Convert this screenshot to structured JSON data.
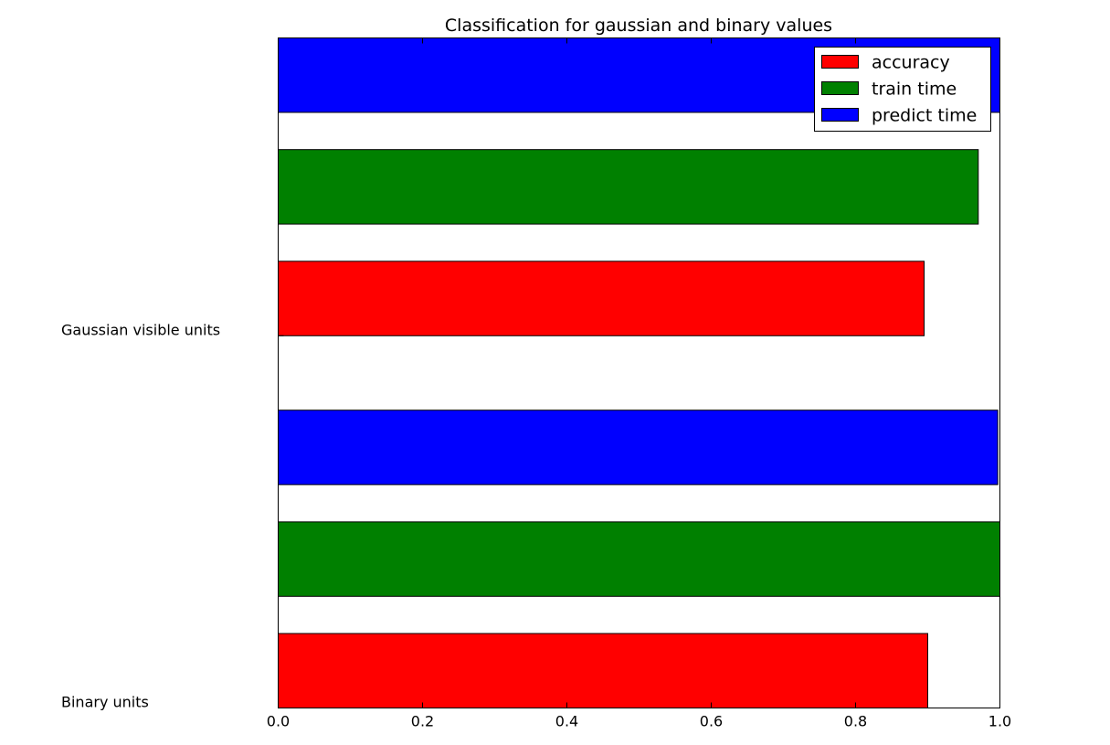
{
  "chart_data": {
    "type": "bar",
    "orientation": "horizontal",
    "title": "Classification for gaussian and binary values",
    "xlabel": "",
    "ylabel": "",
    "categories": [
      "Binary units",
      "Gaussian visible units"
    ],
    "xlim": [
      0.0,
      1.0
    ],
    "xticks": [
      "0.0",
      "0.2",
      "0.4",
      "0.6",
      "0.8",
      "1.0"
    ],
    "grid": false,
    "legend_position": "top-right",
    "series": [
      {
        "name": "accuracy",
        "color": "#ff0000",
        "values": [
          0.9,
          0.895
        ]
      },
      {
        "name": "train time",
        "color": "#008000",
        "values": [
          1.0,
          0.97
        ]
      },
      {
        "name": "predict time",
        "color": "#0000ff",
        "values": [
          0.997,
          1.0
        ]
      }
    ]
  }
}
